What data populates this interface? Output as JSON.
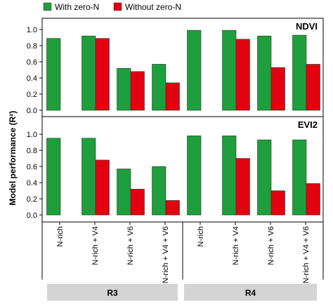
{
  "chart_data": {
    "type": "bar",
    "legend": [
      {
        "name": "With zero-N",
        "color": "#1e9e3c"
      },
      {
        "name": "Without zero-N",
        "color": "#e3000f"
      }
    ],
    "legend_position": "top-left",
    "ylabel": "Model performance (R²)",
    "ylim": [
      0,
      1.2
    ],
    "yticks": [
      "0.0",
      "0.2",
      "0.4",
      "0.6",
      "0.8",
      "1.0"
    ],
    "categories": [
      "N-rich",
      "N-rich + V4",
      "N-rich + V6",
      "N-rich + V4 + V6",
      "N-rich",
      "N-rich + V4",
      "N-rich + V6",
      "N-rich + V4 + V6"
    ],
    "groups": [
      "R3",
      "R4"
    ],
    "grid": false,
    "panels": [
      {
        "title": "NDVI",
        "series": [
          {
            "name": "With zero-N",
            "values": [
              0.89,
              0.92,
              0.52,
              0.57,
              0.99,
              0.99,
              0.92,
              0.93
            ]
          },
          {
            "name": "Without zero-N",
            "values": [
              null,
              0.89,
              0.48,
              0.34,
              null,
              0.88,
              0.53,
              0.57
            ]
          }
        ]
      },
      {
        "title": "EVI2",
        "series": [
          {
            "name": "With zero-N",
            "values": [
              0.95,
              0.95,
              0.57,
              0.6,
              0.98,
              0.98,
              0.93,
              0.93
            ]
          },
          {
            "name": "Without zero-N",
            "values": [
              null,
              0.68,
              0.32,
              0.18,
              null,
              0.7,
              0.3,
              0.39
            ]
          }
        ]
      }
    ]
  }
}
